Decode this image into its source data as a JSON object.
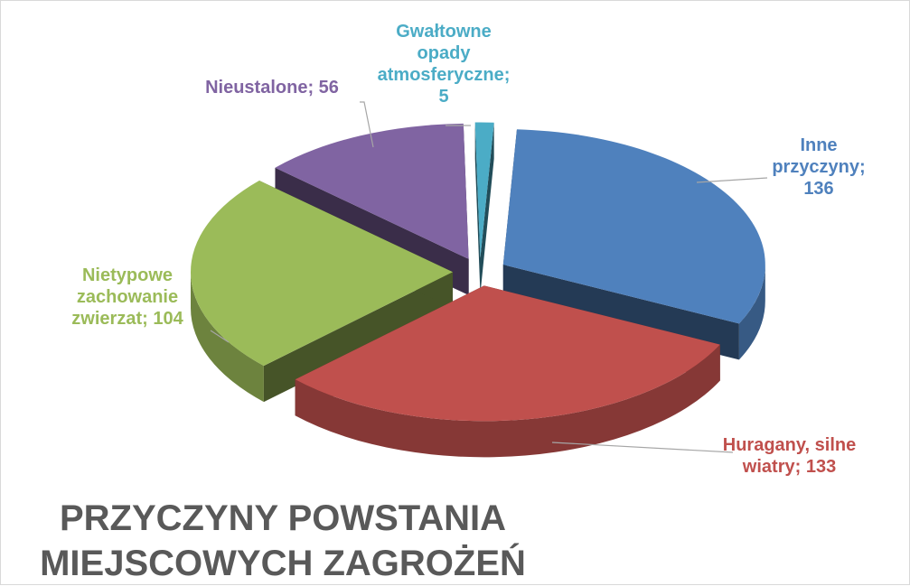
{
  "chart_data": {
    "type": "pie",
    "title": "PRZYCZYNY POWSTANIA MIEJSCOWYCH ZAGROŻEŃ",
    "values": [
      136,
      133,
      104,
      56,
      5
    ],
    "value_labels": [
      "Inne przyczyny; 136",
      "Huragany, silne wiatry; 133",
      "Nietypowe zachowanie zwierzat; 104",
      "Nieustalone; 56",
      "Gwałtowne opady atmosferyczne; 5"
    ],
    "colors": [
      "#4f81bd",
      "#c0504d",
      "#9bbb59",
      "#8064a2",
      "#4bacc6"
    ]
  }
}
